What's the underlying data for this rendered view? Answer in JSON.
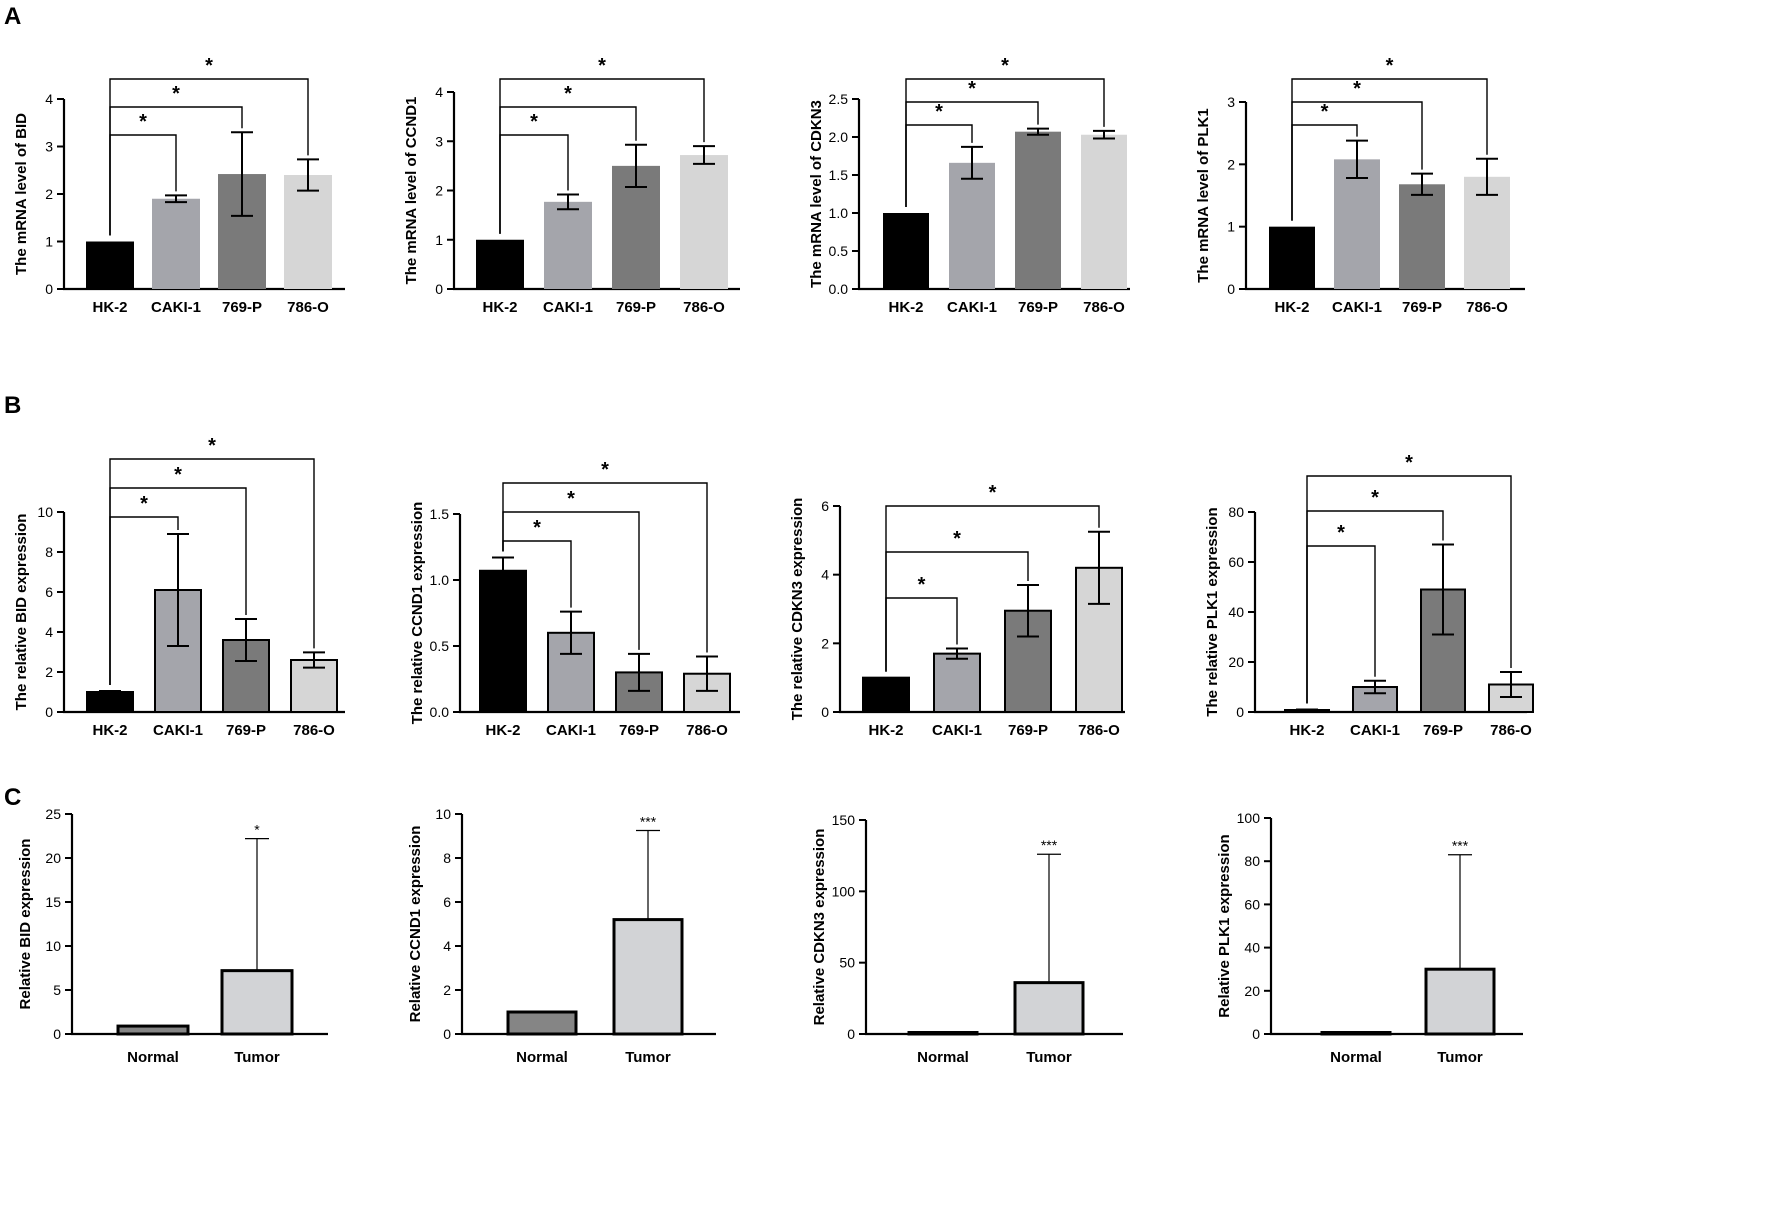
{
  "panel_labels": [
    "A",
    "B",
    "C"
  ],
  "colors": {
    "hk2": "#000000",
    "caki1": "#a4a5ab",
    "p769": "#7a7a7a",
    "o786": "#d6d6d6",
    "normal": "#858585",
    "tumor": "#d2d3d6",
    "axis": "#000000"
  },
  "chart_data": [
    {
      "id": "A1",
      "type": "bar",
      "ylabel": "The mRNA level of BID",
      "categories": [
        "HK-2",
        "CAKI-1",
        "769-P",
        "786-O"
      ],
      "values": [
        1.0,
        1.9,
        2.42,
        2.4
      ],
      "errors": [
        0,
        0.07,
        0.88,
        0.33
      ],
      "colors": [
        "#000000",
        "#a4a5ab",
        "#7a7a7a",
        "#d6d6d6"
      ],
      "outline": false,
      "ylim": [
        0,
        4
      ],
      "yticks": [
        "0",
        "1",
        "2",
        "3",
        "4"
      ],
      "significance": [
        {
          "to": 1,
          "label": "*"
        },
        {
          "to": 2,
          "label": "*"
        },
        {
          "to": 3,
          "label": "*"
        }
      ]
    },
    {
      "id": "A2",
      "type": "bar",
      "ylabel": "The mRNA level of CCND1",
      "categories": [
        "HK-2",
        "CAKI-1",
        "769-P",
        "786-O"
      ],
      "values": [
        1.0,
        1.77,
        2.5,
        2.72
      ],
      "errors": [
        0,
        0.15,
        0.43,
        0.18
      ],
      "colors": [
        "#000000",
        "#a4a5ab",
        "#7a7a7a",
        "#d6d6d6"
      ],
      "outline": false,
      "ylim": [
        0,
        4
      ],
      "yticks": [
        "0",
        "1",
        "2",
        "3",
        "4"
      ],
      "significance": [
        {
          "to": 1,
          "label": "*"
        },
        {
          "to": 2,
          "label": "*"
        },
        {
          "to": 3,
          "label": "*"
        }
      ]
    },
    {
      "id": "A3",
      "type": "bar",
      "ylabel": "The mRNA level of CDKN3",
      "categories": [
        "HK-2",
        "CAKI-1",
        "769-P",
        "786-O"
      ],
      "values": [
        1.0,
        1.66,
        2.07,
        2.03
      ],
      "errors": [
        0,
        0.21,
        0.04,
        0.05
      ],
      "colors": [
        "#000000",
        "#a4a5ab",
        "#7a7a7a",
        "#d6d6d6"
      ],
      "outline": false,
      "ylim": [
        0,
        2.5
      ],
      "yticks": [
        "0.0",
        "0.5",
        "1.0",
        "1.5",
        "2.0",
        "2.5"
      ],
      "significance": [
        {
          "to": 1,
          "label": "*"
        },
        {
          "to": 2,
          "label": "*"
        },
        {
          "to": 3,
          "label": "*"
        }
      ]
    },
    {
      "id": "A4",
      "type": "bar",
      "ylabel": "The mRNA level of  PLK1",
      "categories": [
        "HK-2",
        "CAKI-1",
        "769-P",
        "786-O"
      ],
      "values": [
        1.0,
        2.08,
        1.68,
        1.8
      ],
      "errors": [
        0,
        0.3,
        0.17,
        0.29
      ],
      "colors": [
        "#000000",
        "#a4a5ab",
        "#7a7a7a",
        "#d6d6d6"
      ],
      "outline": false,
      "ylim": [
        0,
        3
      ],
      "yticks": [
        "0",
        "1",
        "2",
        "3"
      ],
      "significance": [
        {
          "to": 1,
          "label": "*"
        },
        {
          "to": 2,
          "label": "*"
        },
        {
          "to": 3,
          "label": "*"
        }
      ]
    },
    {
      "id": "B1",
      "type": "bar",
      "ylabel": "The relative BID expression",
      "categories": [
        "HK-2",
        "CAKI-1",
        "769-P",
        "786-O"
      ],
      "values": [
        1.0,
        6.1,
        3.6,
        2.6
      ],
      "errors": [
        0.05,
        2.8,
        1.05,
        0.38
      ],
      "colors": [
        "#000000",
        "#a4a5ab",
        "#7a7a7a",
        "#d6d6d6"
      ],
      "outline": true,
      "ylim": [
        0,
        10
      ],
      "yticks": [
        "0",
        "2",
        "4",
        "6",
        "8",
        "10"
      ],
      "significance": [
        {
          "to": 1,
          "label": "*"
        },
        {
          "to": 2,
          "label": "*"
        },
        {
          "to": 3,
          "label": "*"
        }
      ]
    },
    {
      "id": "B2",
      "type": "bar",
      "ylabel": "The relative CCND1 expression",
      "categories": [
        "HK-2",
        "CAKI-1",
        "769-P",
        "786-O"
      ],
      "values": [
        1.07,
        0.6,
        0.3,
        0.29
      ],
      "errors": [
        0.1,
        0.16,
        0.14,
        0.13
      ],
      "colors": [
        "#000000",
        "#a4a5ab",
        "#7a7a7a",
        "#d6d6d6"
      ],
      "outline": true,
      "ylim": [
        0,
        1.5
      ],
      "yticks": [
        "0.0",
        "0.5",
        "1.0",
        "1.5"
      ],
      "significance": [
        {
          "to": 1,
          "label": "*"
        },
        {
          "to": 2,
          "label": "*"
        },
        {
          "to": 3,
          "label": "*"
        }
      ]
    },
    {
      "id": "B3",
      "type": "bar",
      "ylabel": "The relative CDKN3 expression",
      "categories": [
        "HK-2",
        "CAKI-1",
        "769-P",
        "786-O"
      ],
      "values": [
        1.0,
        1.7,
        2.95,
        4.2
      ],
      "errors": [
        0,
        0.15,
        0.75,
        1.05
      ],
      "colors": [
        "#000000",
        "#a4a5ab",
        "#7a7a7a",
        "#d6d6d6"
      ],
      "outline": true,
      "ylim": [
        0,
        6
      ],
      "yticks": [
        "0",
        "2",
        "4",
        "6"
      ],
      "significance": [
        {
          "to": 1,
          "label": "*"
        },
        {
          "to": 2,
          "label": "*"
        },
        {
          "to": 3,
          "label": "*"
        }
      ]
    },
    {
      "id": "B4",
      "type": "bar",
      "ylabel": "The relative PLK1 expression",
      "categories": [
        "HK-2",
        "CAKI-1",
        "769-P",
        "786-O"
      ],
      "values": [
        0.8,
        10.0,
        49.0,
        11.0
      ],
      "errors": [
        0.2,
        2.5,
        18.0,
        5.0
      ],
      "colors": [
        "#000000",
        "#a4a5ab",
        "#7a7a7a",
        "#d6d6d6"
      ],
      "outline": true,
      "ylim": [
        0,
        80
      ],
      "yticks": [
        "0",
        "20",
        "40",
        "60",
        "80"
      ],
      "significance": [
        {
          "to": 1,
          "label": "*"
        },
        {
          "to": 2,
          "label": "*"
        },
        {
          "to": 3,
          "label": "*"
        }
      ]
    },
    {
      "id": "C1",
      "type": "bar",
      "ylabel": "Relative  BID expression",
      "categories": [
        "Normal",
        "Tumor"
      ],
      "values": [
        0.9,
        7.2
      ],
      "errors": [
        0,
        15.0
      ],
      "colors": [
        "#858585",
        "#d2d3d6"
      ],
      "outline": true,
      "ylim": [
        0,
        25
      ],
      "yticks": [
        "0",
        "5",
        "10",
        "15",
        "20",
        "25"
      ],
      "stars": [
        {
          "bar": 1,
          "label": "*"
        }
      ]
    },
    {
      "id": "C2",
      "type": "bar",
      "ylabel": "Relative  CCND1 expression",
      "categories": [
        "Normal",
        "Tumor"
      ],
      "values": [
        1.0,
        5.2
      ],
      "errors": [
        0.03,
        4.05
      ],
      "colors": [
        "#858585",
        "#d2d3d6"
      ],
      "outline": true,
      "ylim": [
        0,
        10
      ],
      "yticks": [
        "0",
        "2",
        "4",
        "6",
        "8",
        "10"
      ],
      "stars": [
        {
          "bar": 1,
          "label": "***"
        }
      ]
    },
    {
      "id": "C3",
      "type": "bar",
      "ylabel": "Relative  CDKN3 expression",
      "categories": [
        "Normal",
        "Tumor"
      ],
      "values": [
        0.5,
        36.0
      ],
      "errors": [
        0,
        90.0
      ],
      "colors": [
        "#858585",
        "#d2d3d6"
      ],
      "outline": true,
      "ylim": [
        0,
        150
      ],
      "yticks": [
        "0",
        "50",
        "100",
        "150"
      ],
      "stars": [
        {
          "bar": 1,
          "label": "***"
        }
      ]
    },
    {
      "id": "C4",
      "type": "bar",
      "ylabel": "Relative  PLK1 expression",
      "categories": [
        "Normal",
        "Tumor"
      ],
      "values": [
        0.5,
        30.0
      ],
      "errors": [
        0,
        53.0
      ],
      "colors": [
        "#858585",
        "#d2d3d6"
      ],
      "outline": true,
      "ylim": [
        0,
        100
      ],
      "yticks": [
        "0",
        "20",
        "40",
        "60",
        "80",
        "100"
      ],
      "stars": [
        {
          "bar": 1,
          "label": "***"
        }
      ]
    }
  ]
}
